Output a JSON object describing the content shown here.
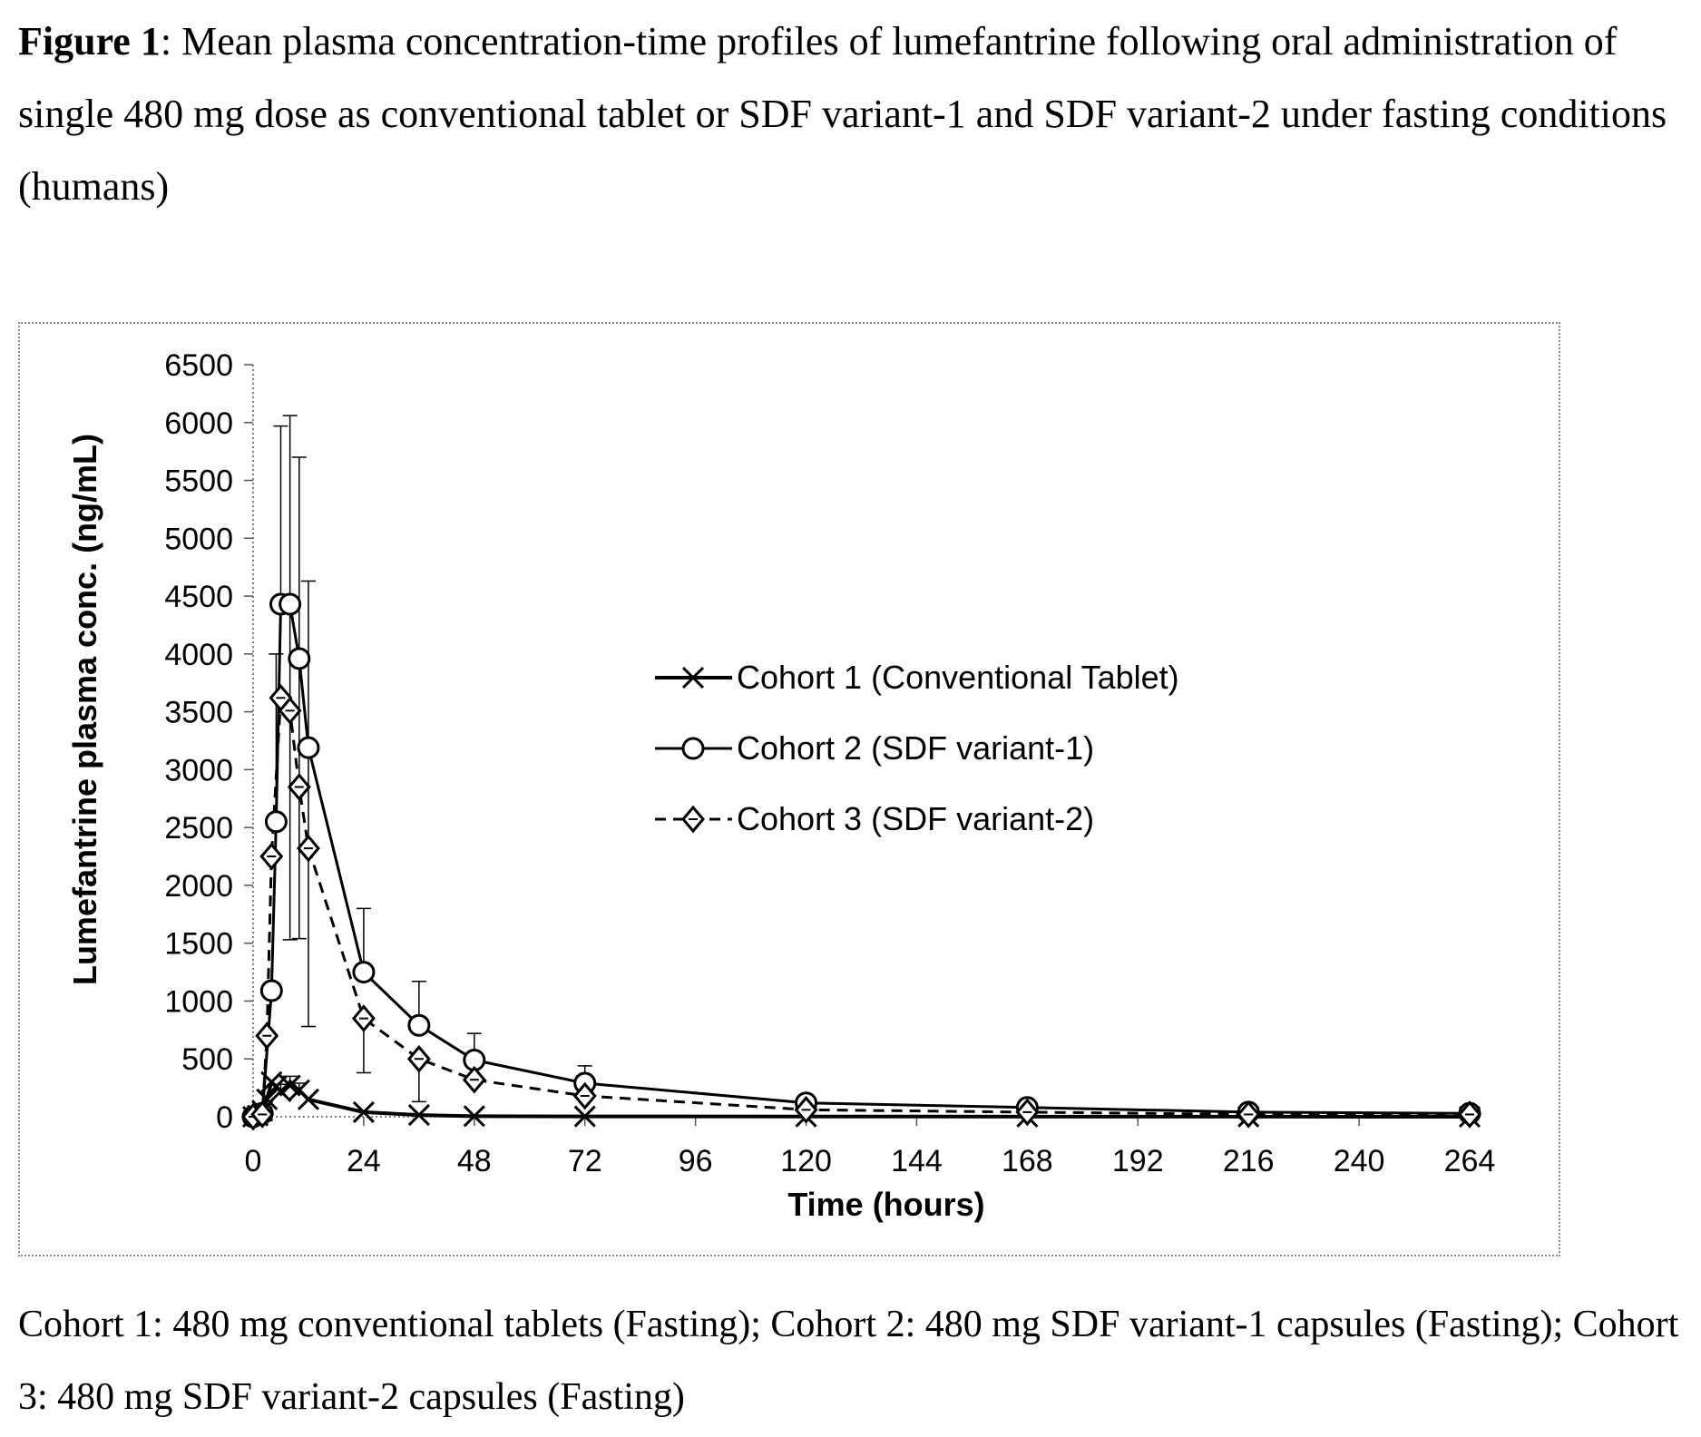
{
  "caption": {
    "label": "Figure 1",
    "text": ": Mean plasma concentration-time profiles of lumefantrine following oral administration of single 480 mg dose as conventional tablet or SDF variant-1 and SDF variant-2 under fasting conditions (humans)"
  },
  "footnote": "Cohort 1: 480 mg conventional tablets (Fasting); Cohort 2: 480 mg SDF variant-1 capsules (Fasting); Cohort 3: 480 mg SDF variant-2 capsules (Fasting)",
  "chart_data": {
    "type": "line",
    "xlabel": "Time (hours)",
    "ylabel": "Lumefantrine plasma conc. (ng/mL)",
    "xlim": [
      0,
      264
    ],
    "ylim": [
      0,
      6500
    ],
    "xticks": [
      0,
      24,
      48,
      72,
      96,
      120,
      144,
      168,
      192,
      216,
      240,
      264
    ],
    "yticks": [
      0,
      500,
      1000,
      1500,
      2000,
      2500,
      3000,
      3500,
      4000,
      4500,
      5000,
      5500,
      6000,
      6500
    ],
    "grid": false,
    "legend": "center-right",
    "series": [
      {
        "name": "Cohort 1 (Conventional Tablet)",
        "marker": "x",
        "line": "solid-thick",
        "color": "#000000",
        "x": [
          0,
          1,
          2,
          3,
          4,
          5,
          6,
          8,
          10,
          12,
          24,
          36,
          48,
          72,
          120,
          168,
          216,
          264
        ],
        "y": [
          0,
          10,
          50,
          150,
          300,
          260,
          220,
          270,
          230,
          150,
          40,
          15,
          5,
          3,
          2,
          1,
          1,
          0
        ],
        "err_upper": [
          0,
          0,
          0,
          0,
          0,
          0,
          60,
          80,
          60,
          0,
          0,
          0,
          0,
          0,
          0,
          0,
          0,
          0
        ]
      },
      {
        "name": "Cohort 2 (SDF variant-1)",
        "marker": "circle",
        "line": "solid",
        "color": "#000000",
        "x": [
          0,
          2,
          4,
          5,
          6,
          8,
          10,
          12,
          24,
          36,
          48,
          72,
          120,
          168,
          216,
          264
        ],
        "y": [
          0,
          30,
          1090,
          2550,
          4430,
          4430,
          3960,
          3190,
          1250,
          790,
          490,
          290,
          120,
          80,
          40,
          30
        ],
        "err_upper": [
          0,
          0,
          0,
          1450,
          1540,
          1630,
          1740,
          1440,
          550,
          380,
          230,
          150,
          0,
          0,
          0,
          0
        ],
        "err_lower": [
          0,
          0,
          0,
          0,
          0,
          2900,
          2420,
          2410,
          0,
          0,
          0,
          0,
          0,
          0,
          0,
          0
        ]
      },
      {
        "name": "Cohort 3 (SDF variant-2)",
        "marker": "diamond",
        "line": "dashed",
        "color": "#000000",
        "x": [
          0,
          2,
          3,
          4,
          6,
          8,
          10,
          12,
          24,
          36,
          48,
          72,
          120,
          168,
          216,
          264
        ],
        "y": [
          0,
          20,
          700,
          2250,
          3620,
          3510,
          2850,
          2320,
          850,
          500,
          320,
          180,
          60,
          40,
          20,
          20
        ],
        "err_upper": [
          0,
          0,
          0,
          0,
          0,
          0,
          0,
          0,
          0,
          0,
          0,
          0,
          0,
          0,
          0,
          0
        ],
        "err_lower": [
          0,
          0,
          0,
          0,
          0,
          0,
          0,
          0,
          470,
          370,
          0,
          0,
          0,
          0,
          0,
          0
        ]
      }
    ]
  }
}
